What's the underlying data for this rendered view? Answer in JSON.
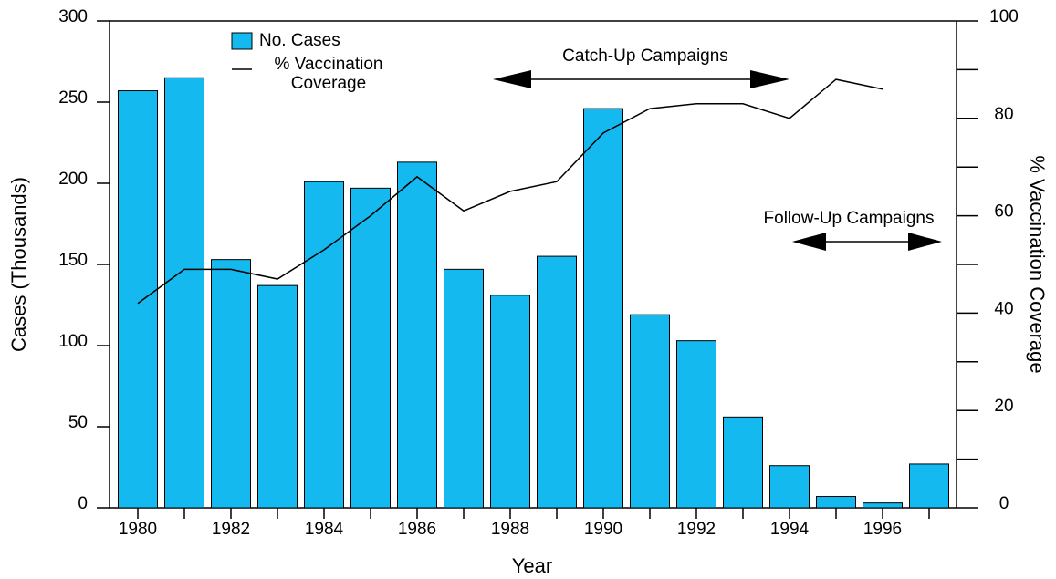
{
  "chart_data": {
    "type": "bar-line",
    "categories": [
      "1980",
      null,
      "1982",
      null,
      "1984",
      null,
      "1986",
      null,
      "1988",
      null,
      "1990",
      null,
      "1992",
      null,
      "1994",
      null,
      "1996",
      null
    ],
    "series": [
      {
        "name": "No. Cases",
        "type": "bar",
        "color": "#14b9ef",
        "values": [
          257,
          265,
          153,
          137,
          201,
          197,
          213,
          147,
          131,
          155,
          246,
          119,
          103,
          56,
          26,
          7,
          3,
          27
        ]
      },
      {
        "name": "% Vaccination Coverage",
        "type": "line",
        "axis": "y2",
        "color": "#000000",
        "values": [
          42,
          49,
          49,
          47,
          53,
          60,
          68,
          61,
          65,
          67,
          77,
          82,
          83,
          83,
          80,
          88,
          86,
          null
        ]
      }
    ],
    "x_label": "Year",
    "y_label": "Cases (Thousands)",
    "y2_label": "% Vaccination Coverage",
    "ylim": [
      0,
      300
    ],
    "yticks": [
      0,
      50,
      100,
      150,
      200,
      250,
      300
    ],
    "y2lim": [
      0,
      100
    ],
    "y2ticks": [
      0,
      20,
      40,
      60,
      80,
      100
    ],
    "y2minorticks": [
      10,
      30,
      50,
      70,
      90
    ],
    "annotations": [
      "Catch-Up Campaigns",
      "Follow-Up Campaigns"
    ]
  }
}
